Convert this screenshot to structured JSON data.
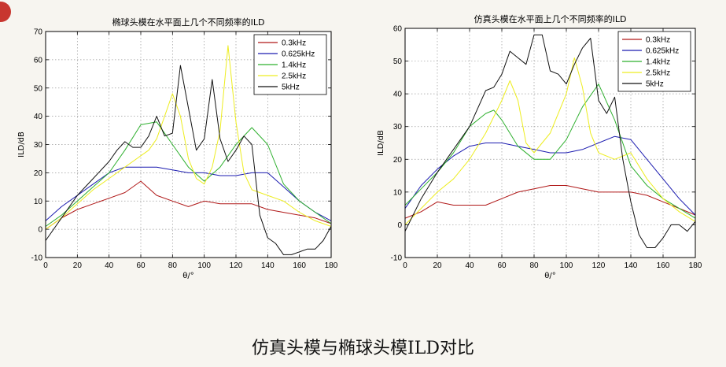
{
  "slide": {
    "caption": "仿真头模与椭球头模ILD对比",
    "accent_color": "#c8362f",
    "background_color": "#f7f5f0"
  },
  "series_colors": [
    "#b01818",
    "#1c1cb0",
    "#2fb02f",
    "#eded20",
    "#111111"
  ],
  "chart_data": [
    {
      "type": "line",
      "title": "椭球头模在水平面上几个不同频率的ILD",
      "xlabel": "θ/°",
      "ylabel": "ILD/dB",
      "xlim": [
        0,
        180
      ],
      "ylim": [
        -10,
        70
      ],
      "xticks": [
        0,
        20,
        40,
        60,
        80,
        100,
        120,
        140,
        160,
        180
      ],
      "yticks": [
        -10,
        0,
        10,
        20,
        30,
        40,
        50,
        60,
        70
      ],
      "grid": true,
      "legend_position": "top-right",
      "series": [
        {
          "name": "0.3kHz",
          "x": [
            0,
            10,
            20,
            30,
            40,
            50,
            60,
            70,
            80,
            90,
            100,
            110,
            120,
            130,
            140,
            150,
            160,
            170,
            180
          ],
          "values": [
            0,
            4,
            7,
            9,
            11,
            13,
            17,
            12,
            10,
            8,
            10,
            9,
            9,
            9,
            7,
            6,
            5,
            4,
            2
          ]
        },
        {
          "name": "0.625kHz",
          "x": [
            0,
            10,
            20,
            30,
            40,
            50,
            60,
            70,
            80,
            90,
            100,
            110,
            120,
            130,
            140,
            150,
            160,
            170,
            180
          ],
          "values": [
            3,
            8,
            12,
            16,
            20,
            22,
            22,
            22,
            21,
            20,
            20,
            19,
            19,
            20,
            20,
            15,
            10,
            6,
            3
          ]
        },
        {
          "name": "1.4kHz",
          "x": [
            0,
            10,
            20,
            30,
            40,
            50,
            60,
            70,
            80,
            90,
            100,
            110,
            120,
            130,
            140,
            150,
            160,
            170,
            180
          ],
          "values": [
            1,
            5,
            10,
            15,
            20,
            28,
            37,
            38,
            30,
            22,
            17,
            22,
            30,
            36,
            30,
            16,
            10,
            6,
            2
          ]
        },
        {
          "name": "2.5kHz",
          "x": [
            0,
            10,
            20,
            30,
            40,
            50,
            55,
            60,
            65,
            70,
            75,
            80,
            85,
            90,
            95,
            100,
            105,
            110,
            115,
            120,
            125,
            130,
            140,
            150,
            160,
            170,
            180
          ],
          "values": [
            0,
            4,
            9,
            14,
            18,
            22,
            24,
            26,
            28,
            32,
            40,
            48,
            40,
            25,
            18,
            16,
            22,
            35,
            65,
            38,
            20,
            14,
            12,
            10,
            6,
            3,
            1
          ]
        },
        {
          "name": "5kHz",
          "x": [
            0,
            10,
            20,
            30,
            40,
            45,
            50,
            55,
            60,
            65,
            70,
            75,
            80,
            85,
            90,
            95,
            100,
            105,
            110,
            115,
            120,
            125,
            130,
            135,
            140,
            145,
            150,
            155,
            160,
            165,
            170,
            175,
            180
          ],
          "values": [
            -4,
            4,
            12,
            18,
            24,
            28,
            31,
            29,
            29,
            33,
            40,
            33,
            34,
            58,
            43,
            28,
            32,
            53,
            32,
            24,
            28,
            33,
            30,
            5,
            -3,
            -5,
            -9,
            -9,
            -8,
            -7,
            -7,
            -4,
            1
          ]
        }
      ]
    },
    {
      "type": "line",
      "title": "仿真头模在水平面上几个不同频率的ILD",
      "xlabel": "θ/°",
      "ylabel": "ILD/dB",
      "xlim": [
        0,
        180
      ],
      "ylim": [
        -10,
        60
      ],
      "xticks": [
        0,
        20,
        40,
        60,
        80,
        100,
        120,
        140,
        160,
        180
      ],
      "yticks": [
        -10,
        0,
        10,
        20,
        30,
        40,
        50,
        60
      ],
      "grid": true,
      "legend_position": "top-right",
      "series": [
        {
          "name": "0.3kHz",
          "x": [
            0,
            10,
            20,
            30,
            40,
            50,
            60,
            70,
            80,
            90,
            100,
            110,
            120,
            130,
            140,
            150,
            160,
            170,
            180
          ],
          "values": [
            2,
            4,
            7,
            6,
            6,
            6,
            8,
            10,
            11,
            12,
            12,
            11,
            10,
            10,
            10,
            9,
            7,
            5,
            3
          ]
        },
        {
          "name": "0.625kHz",
          "x": [
            0,
            10,
            20,
            30,
            40,
            50,
            60,
            70,
            80,
            90,
            100,
            110,
            120,
            130,
            140,
            150,
            160,
            170,
            180
          ],
          "values": [
            5,
            12,
            17,
            21,
            24,
            25,
            25,
            24,
            23,
            22,
            22,
            23,
            25,
            27,
            26,
            20,
            14,
            8,
            3
          ]
        },
        {
          "name": "1.4kHz",
          "x": [
            0,
            10,
            20,
            30,
            40,
            50,
            55,
            60,
            70,
            80,
            90,
            100,
            110,
            120,
            130,
            140,
            150,
            160,
            170,
            180
          ],
          "values": [
            6,
            11,
            16,
            22,
            30,
            34,
            35,
            32,
            24,
            20,
            20,
            26,
            36,
            43,
            32,
            18,
            12,
            8,
            5,
            2
          ]
        },
        {
          "name": "2.5kHz",
          "x": [
            0,
            10,
            20,
            30,
            40,
            50,
            60,
            65,
            70,
            75,
            80,
            90,
            100,
            105,
            110,
            115,
            120,
            130,
            140,
            150,
            160,
            170,
            180
          ],
          "values": [
            0,
            5,
            10,
            14,
            20,
            28,
            38,
            44,
            38,
            25,
            22,
            28,
            40,
            51,
            42,
            28,
            22,
            20,
            22,
            14,
            8,
            4,
            1
          ]
        },
        {
          "name": "5kHz",
          "x": [
            0,
            10,
            20,
            30,
            40,
            50,
            55,
            60,
            65,
            70,
            75,
            80,
            85,
            90,
            95,
            100,
            105,
            110,
            115,
            120,
            125,
            130,
            135,
            140,
            145,
            150,
            155,
            160,
            165,
            170,
            175,
            180
          ],
          "values": [
            -2,
            8,
            16,
            23,
            30,
            41,
            42,
            46,
            53,
            51,
            49,
            58,
            58,
            47,
            46,
            43,
            49,
            54,
            57,
            38,
            34,
            39,
            20,
            7,
            -3,
            -7,
            -7,
            -4,
            0,
            0,
            -2,
            1
          ]
        }
      ]
    }
  ]
}
